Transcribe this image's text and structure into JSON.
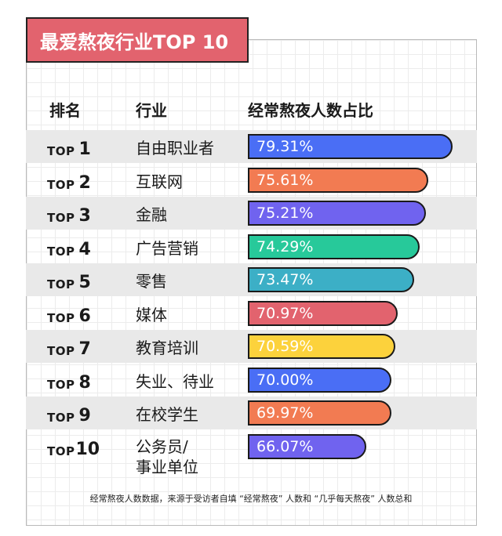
{
  "title": "最爱熬夜行业TOP 10",
  "headers": {
    "rank": "排名",
    "industry": "行业",
    "percent": "经常熬夜人数占比"
  },
  "chart_data": {
    "type": "bar",
    "title": "最爱熬夜行业TOP 10",
    "orientation": "horizontal",
    "unit": "%",
    "categories": [
      "自由职业者",
      "互联网",
      "金融",
      "广告营销",
      "零售",
      "媒体",
      "教育培训",
      "失业、待业",
      "在校学生",
      "公务员/事业单位"
    ],
    "values": [
      79.31,
      75.61,
      75.21,
      74.29,
      73.47,
      70.97,
      70.59,
      70.0,
      69.97,
      66.07
    ]
  },
  "rows": [
    {
      "top": "TOP",
      "num": "1",
      "industry": "自由职业者",
      "value_label": "79.31%",
      "color": "#4a6ef5"
    },
    {
      "top": "TOP",
      "num": "2",
      "industry": "互联网",
      "value_label": "75.61%",
      "color": "#f27b52"
    },
    {
      "top": "TOP",
      "num": "3",
      "industry": "金融",
      "value_label": "75.21%",
      "color": "#7063ef"
    },
    {
      "top": "TOP",
      "num": "4",
      "industry": "广告营销",
      "value_label": "74.29%",
      "color": "#27c99a"
    },
    {
      "top": "TOP",
      "num": "5",
      "industry": "零售",
      "value_label": "73.47%",
      "color": "#3cafc6"
    },
    {
      "top": "TOP",
      "num": "6",
      "industry": "媒体",
      "value_label": "70.97%",
      "color": "#e2636e"
    },
    {
      "top": "TOP",
      "num": "7",
      "industry": "教育培训",
      "value_label": "70.59%",
      "color": "#fcd23c"
    },
    {
      "top": "TOP",
      "num": "8",
      "industry": "失业、待业",
      "value_label": "70.00%",
      "color": "#4a6ef5"
    },
    {
      "top": "TOP",
      "num": "9",
      "industry": "在校学生",
      "value_label": "69.97%",
      "color": "#f27b52"
    },
    {
      "top": "TOP",
      "num": "10",
      "industry_lines": [
        "公务员/",
        "事业单位"
      ],
      "value_label": "66.07%",
      "color": "#7063ef"
    }
  ],
  "footnote": "经常熬夜人数数据，来源于受访者自填 “经常熬夜” 人数和 “几乎每天熬夜” 人数总和"
}
